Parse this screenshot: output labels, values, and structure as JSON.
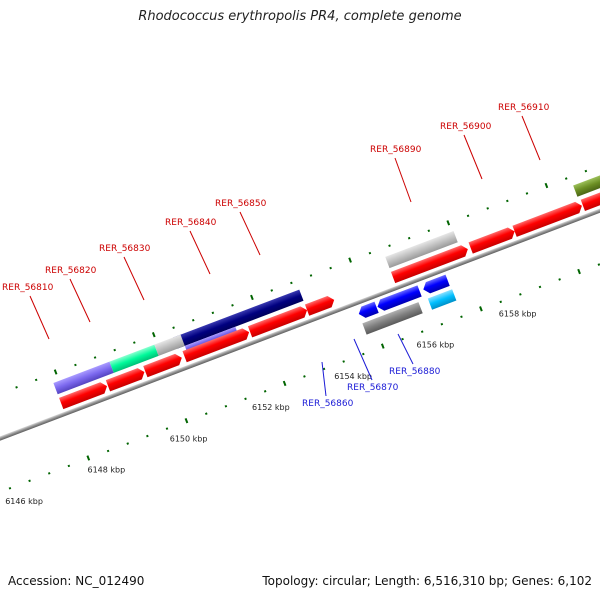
{
  "title": "Rhodococcus erythropolis PR4, complete genome",
  "footer": {
    "accession": "Accession: NC_012490",
    "summary": "Topology: circular; Length: 6,516,310 bp; Genes: 6,102"
  },
  "scale_labels": [
    "6146 kbp",
    "6148 kbp",
    "6150 kbp",
    "6152 kbp",
    "6154 kbp",
    "6156 kbp",
    "6158 kbp"
  ],
  "gene_labels_forward": [
    "RER_56810",
    "RER_56820",
    "RER_56830",
    "RER_56840",
    "RER_56850",
    "RER_56890",
    "RER_56900",
    "RER_56910"
  ],
  "gene_labels_reverse": [
    "RER_56860",
    "RER_56870",
    "RER_56880"
  ],
  "colors": {
    "forward_gene": "#ff0000",
    "reverse_gene": "#0000ff",
    "forward_label": "#cc0000",
    "reverse_label": "#1a1ad6",
    "pseudo_gray": "#c0c0c0",
    "dark_blue": "#000080",
    "slate_blue": "#7b68ee",
    "spring_green": "#00fa9a",
    "olive": "#6b8e23",
    "deep_sky": "#00bfff",
    "gray": "#808080",
    "backbone": "#808080",
    "tick": "#006400"
  }
}
